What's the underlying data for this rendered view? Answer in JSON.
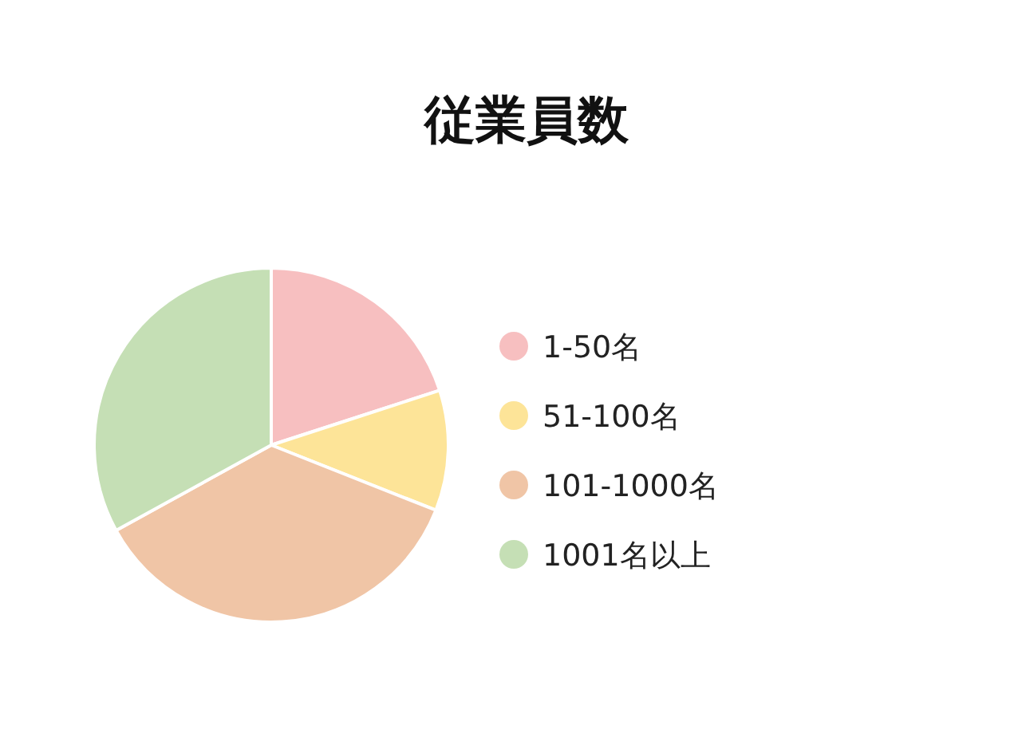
{
  "chart_data": {
    "type": "pie",
    "title": "従業員数",
    "categories": [
      "1-50名",
      "51-100名",
      "101-1000名",
      "1001名以上"
    ],
    "values": [
      20,
      11,
      36,
      33
    ],
    "colors": [
      "#f7bfc0",
      "#fde498",
      "#f0c5a6",
      "#c5dfb5"
    ],
    "legend": "right"
  }
}
